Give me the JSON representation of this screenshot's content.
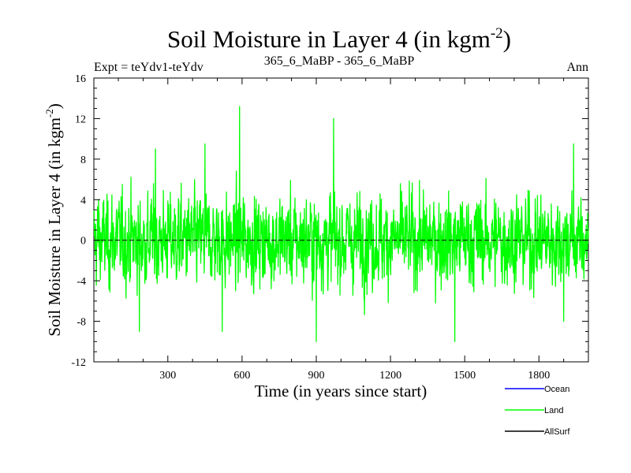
{
  "chart_data": {
    "type": "line",
    "title": "Soil Moisture in Layer 4 (in kgm",
    "title_sup": "-2",
    "title_close": ")",
    "subtitle_left": "Expt = teYdv1-teYdv",
    "subtitle_center": "365_6_MaBP - 365_6_MaBP",
    "subtitle_right": "Ann",
    "xlabel": "Time (in years since start)",
    "ylabel": "Soil Moisture in Layer 4 (in kgm",
    "ylabel_sup": "-2",
    "ylabel_close": ")",
    "xlim": [
      1,
      2000
    ],
    "ylim": [
      -12,
      16
    ],
    "x_ticks": [
      300,
      600,
      900,
      1200,
      1500,
      1800
    ],
    "x_tick_labels": [
      "300",
      "600",
      "900",
      "1200",
      "1500",
      "1800"
    ],
    "y_ticks": [
      -12,
      -8,
      -4,
      0,
      4,
      8,
      12,
      16
    ],
    "y_tick_labels": [
      "-12",
      "-8",
      "-4",
      "0",
      "4",
      "8",
      "12",
      "16"
    ],
    "zero_line": 0,
    "series": [
      {
        "name": "Ocean",
        "color": "#0000ff",
        "values": []
      },
      {
        "name": "Land",
        "color": "#00ff00",
        "n_points": 2000,
        "min": -10,
        "max": 13.2,
        "key_points": [
          [
            20,
            4
          ],
          [
            185,
            -9
          ],
          [
            250,
            9
          ],
          [
            450,
            9.5
          ],
          [
            520,
            -9
          ],
          [
            590,
            13.2
          ],
          [
            900,
            -10
          ],
          [
            970,
            12
          ],
          [
            1460,
            -10
          ],
          [
            1900,
            -8
          ],
          [
            1940,
            9.5
          ]
        ]
      },
      {
        "name": "AllSurf",
        "color": "#000000",
        "values": []
      }
    ]
  },
  "legend": {
    "items": [
      {
        "label": "Ocean",
        "color": "#0000ff"
      },
      {
        "label": "Land",
        "color": "#00ff00"
      },
      {
        "label": "AllSurf",
        "color": "#000000"
      }
    ]
  }
}
